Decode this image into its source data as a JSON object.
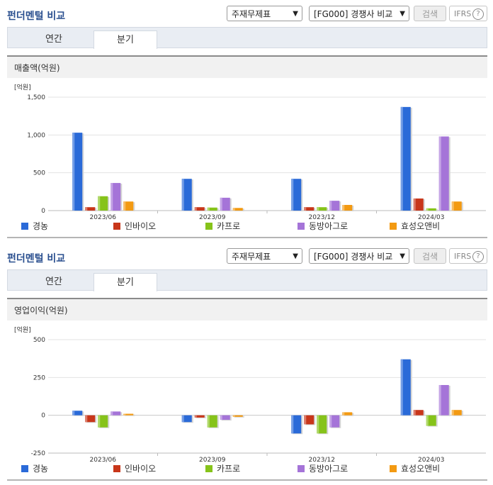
{
  "panels": [
    {
      "title": "펀더멘털 비교",
      "select1": "주재무제표",
      "select2": "[FG000] 경쟁사 비교",
      "search_label": "검색",
      "ifrs_label": "IFRS",
      "help_glyph": "?",
      "tabs": [
        "연간",
        "분기"
      ],
      "active_tab": "분기",
      "section_title": "매출액(억원)",
      "unit_label": "[억원]"
    },
    {
      "title": "펀더멘털 비교",
      "select1": "주재무제표",
      "select2": "[FG000] 경쟁사 비교",
      "search_label": "검색",
      "ifrs_label": "IFRS",
      "help_glyph": "?",
      "tabs": [
        "연간",
        "분기"
      ],
      "active_tab": "분기",
      "section_title": "영업이익(억원)",
      "unit_label": "[억원]"
    }
  ],
  "series_colors": [
    "#2a6ad8",
    "#c8361a",
    "#86c31a",
    "#a574d8",
    "#f39a12"
  ],
  "chart_data": [
    {
      "type": "bar",
      "title": "매출액(억원)",
      "ylabel": "[억원]",
      "categories": [
        "2023/06",
        "2023/09",
        "2023/12",
        "2024/03"
      ],
      "ylim": [
        0,
        1500
      ],
      "yticks": [
        0,
        500,
        1000,
        1500
      ],
      "ytick_labels": [
        "0",
        "500",
        "1,000",
        "1,500"
      ],
      "grid": true,
      "legend_position": "bottom",
      "series": [
        {
          "name": "경농",
          "values": [
            1030,
            420,
            420,
            1370
          ]
        },
        {
          "name": "인바이오",
          "values": [
            45,
            45,
            45,
            160
          ]
        },
        {
          "name": "카프로",
          "values": [
            190,
            40,
            45,
            30
          ]
        },
        {
          "name": "동방아그로",
          "values": [
            365,
            170,
            130,
            980
          ]
        },
        {
          "name": "효성오앤비",
          "values": [
            120,
            35,
            75,
            120
          ]
        }
      ]
    },
    {
      "type": "bar",
      "title": "영업이익(억원)",
      "ylabel": "[억원]",
      "categories": [
        "2023/06",
        "2023/09",
        "2023/12",
        "2024/03"
      ],
      "ylim": [
        -250,
        500
      ],
      "yticks": [
        -250,
        0,
        250,
        500
      ],
      "ytick_labels": [
        "-250",
        "0",
        "250",
        "500"
      ],
      "grid": true,
      "legend_position": "bottom",
      "series": [
        {
          "name": "경농",
          "values": [
            30,
            -45,
            -120,
            370
          ]
        },
        {
          "name": "인바이오",
          "values": [
            -45,
            -15,
            -60,
            35
          ]
        },
        {
          "name": "카프로",
          "values": [
            -80,
            -80,
            -120,
            -70
          ]
        },
        {
          "name": "동방아그로",
          "values": [
            25,
            -30,
            -80,
            200
          ]
        },
        {
          "name": "효성오앤비",
          "values": [
            10,
            -10,
            20,
            35
          ]
        }
      ]
    }
  ]
}
